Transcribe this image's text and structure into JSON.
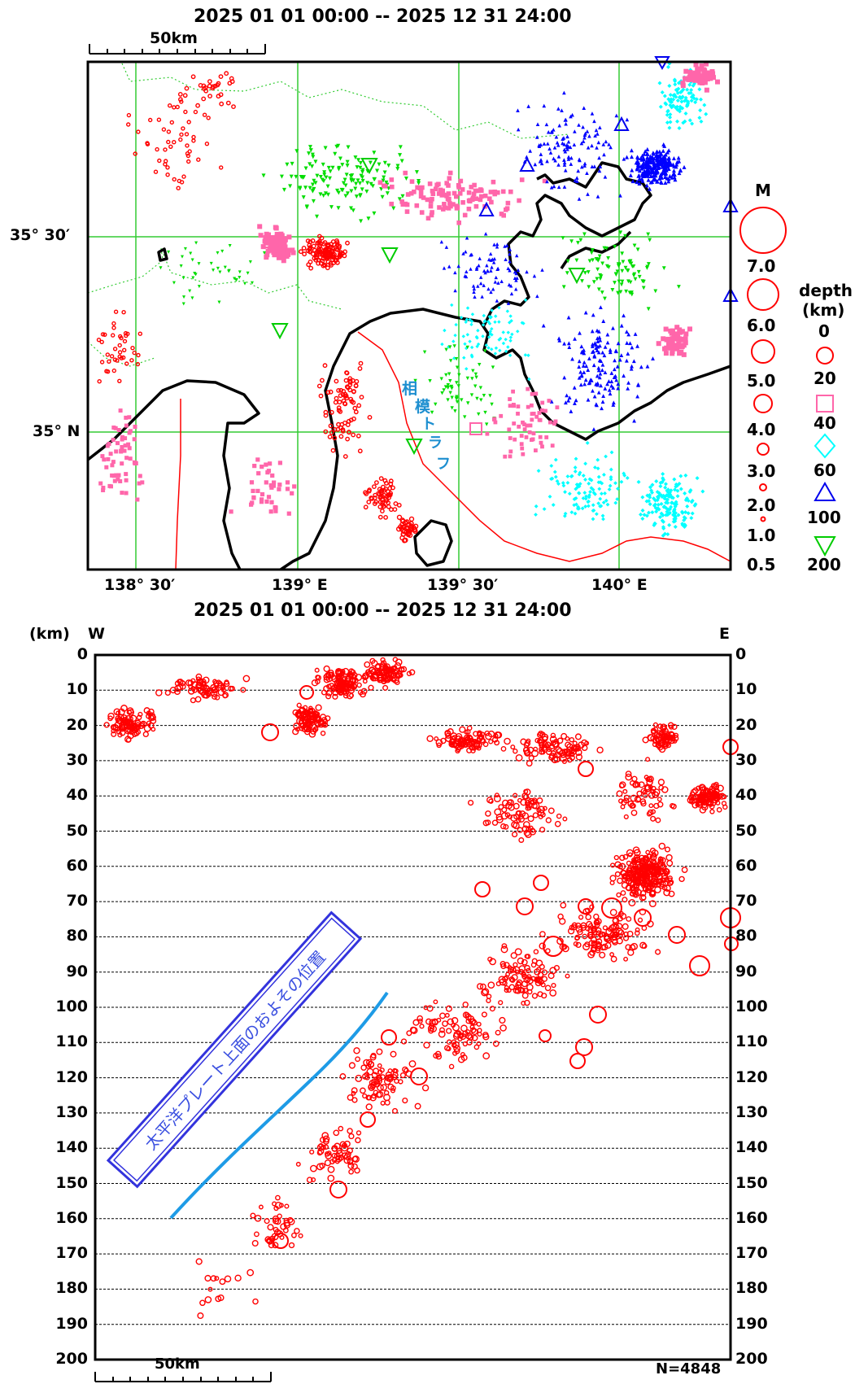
{
  "map": {
    "period_top": "2025 01 01 00:00 -- 2025 12 31 24:00",
    "scale_label": "50km",
    "lat_labels": [
      "35° 30′",
      "35° N"
    ],
    "lon_labels": [
      "138° 30′",
      "139° E",
      "139° 30′",
      "140° E"
    ],
    "trough_label": [
      "相",
      "模",
      "ト",
      "ラ",
      "フ"
    ]
  },
  "legend": {
    "magnitude_title": "M",
    "magnitudes": [
      "7.0",
      "6.0",
      "5.0",
      "4.0",
      "3.0",
      "2.0",
      "1.0",
      "0.5"
    ],
    "depth_title": "depth",
    "depth_unit": "(km)",
    "depths": [
      "0",
      "20",
      "40",
      "60",
      "100",
      "200"
    ]
  },
  "section": {
    "period": "2025 01 01 00:00 -- 2025 12 31 24:00",
    "unit_label": "(km)",
    "west_label": "W",
    "east_label": "E",
    "depth_ticks": [
      "0",
      "10",
      "20",
      "30",
      "40",
      "50",
      "60",
      "70",
      "80",
      "90",
      "100",
      "110",
      "120",
      "130",
      "140",
      "150",
      "160",
      "170",
      "180",
      "190",
      "200"
    ],
    "plate_label": "太平洋プレート上面のおよその位置",
    "scale_label": "50km",
    "count_label": "N=4848"
  },
  "colors": {
    "d0": "#ff0000",
    "d20": "#ff66aa",
    "d40": "#00ff00",
    "d60": "#00ffff",
    "d100": "#0000ff",
    "grid": "#33cc33",
    "plate_line": "#1e9be6",
    "plate_box": "#3333dd"
  }
}
